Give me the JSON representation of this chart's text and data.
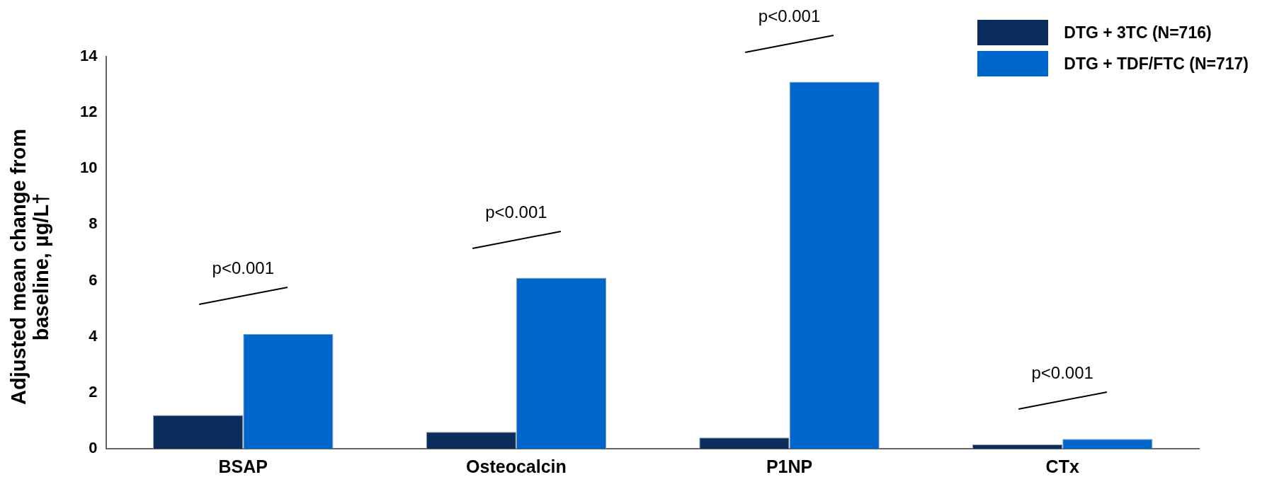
{
  "chart_data": {
    "type": "bar",
    "ylabel": "Adjusted mean change from baseline, µg/L†",
    "categories": [
      "BSAP",
      "Osteocalcin",
      "P1NP",
      "CTx"
    ],
    "series": [
      {
        "name": "DTG + 3TC (N=716)",
        "color": "#0a2d5c",
        "values": [
          1.2,
          0.6,
          0.4,
          0.15
        ]
      },
      {
        "name": "DTG + TDF/FTC (N=717)",
        "color": "#0066cc",
        "values": [
          4.1,
          6.1,
          13.1,
          0.35
        ]
      }
    ],
    "ylim": [
      0,
      14
    ],
    "yticks": [
      0,
      2,
      4,
      6,
      8,
      10,
      12,
      14
    ],
    "grid": false,
    "legend": "top right",
    "annotations": [
      "p<0.001",
      "p<0.001",
      "p<0.001",
      "p<0.001"
    ]
  }
}
